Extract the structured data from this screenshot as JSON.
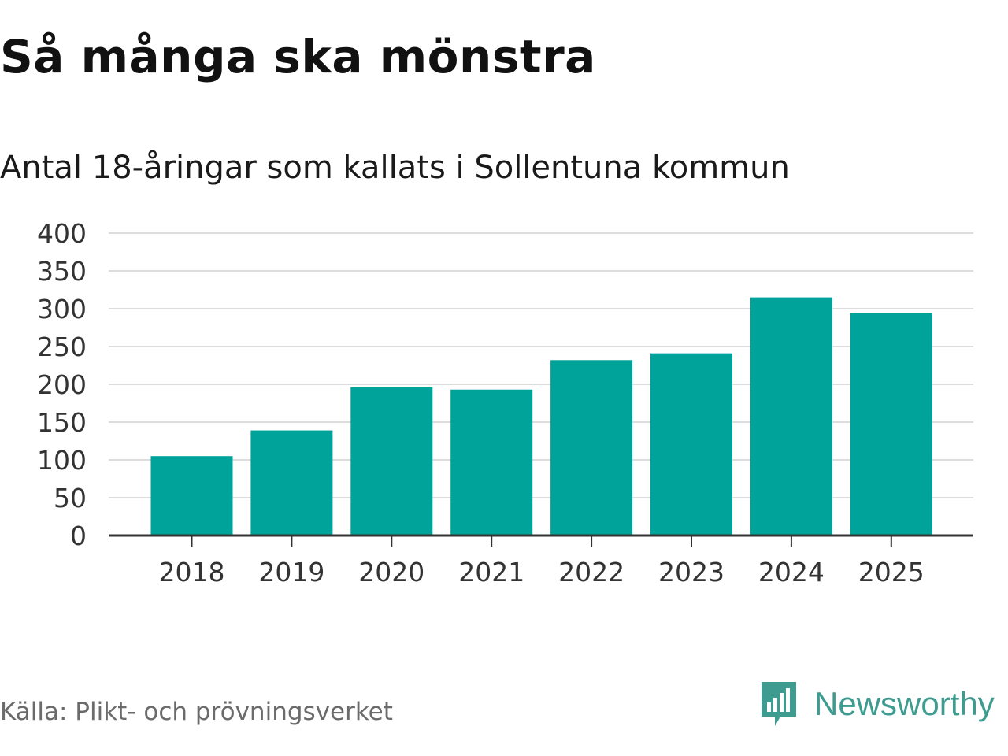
{
  "chart_data": {
    "type": "bar",
    "title": "Så många ska mönstra",
    "subtitle": "Antal 18-åringar som kallats i Sollentuna kommun",
    "categories": [
      "2018",
      "2019",
      "2020",
      "2021",
      "2022",
      "2023",
      "2024",
      "2025"
    ],
    "values": [
      105,
      139,
      196,
      193,
      232,
      241,
      315,
      294
    ],
    "ylim": [
      0,
      400
    ],
    "yticks": [
      0,
      50,
      100,
      150,
      200,
      250,
      300,
      350,
      400
    ],
    "xlabel": "",
    "ylabel": "",
    "grid": true,
    "bar_color": "#00a39a"
  },
  "source": "Källa: Plikt- och prövningsverket",
  "brand": {
    "name": "Newsworthy",
    "icon": "newsworthy-logo-icon",
    "color": "#3d9c8f"
  }
}
